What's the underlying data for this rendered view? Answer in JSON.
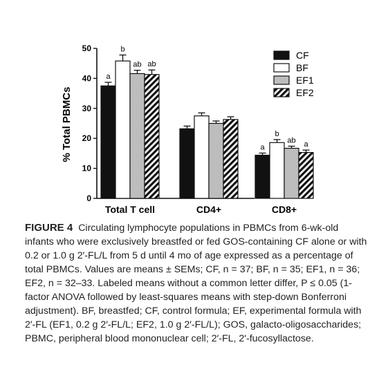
{
  "chart_data": {
    "type": "bar",
    "title": "",
    "xlabel": "",
    "ylabel": "% Total PBMCs",
    "ylim": [
      0,
      50
    ],
    "yticks": [
      0,
      10,
      20,
      30,
      40,
      50
    ],
    "categories": [
      "Total T cell",
      "CD4+",
      "CD8+"
    ],
    "series": [
      {
        "name": "CF",
        "values": [
          37.5,
          23.2,
          14.4
        ],
        "errors": [
          1.2,
          0.9,
          0.7
        ],
        "letters": [
          "a",
          "",
          "a"
        ]
      },
      {
        "name": "BF",
        "values": [
          45.8,
          27.5,
          18.6
        ],
        "errors": [
          2.0,
          1.0,
          1.0
        ],
        "letters": [
          "b",
          "",
          "b"
        ]
      },
      {
        "name": "EF1",
        "values": [
          41.6,
          25.0,
          16.7
        ],
        "errors": [
          1.1,
          0.8,
          0.7
        ],
        "letters": [
          "ab",
          "",
          "ab"
        ]
      },
      {
        "name": "EF2",
        "values": [
          41.3,
          26.3,
          15.3
        ],
        "errors": [
          1.5,
          0.9,
          0.8
        ],
        "letters": [
          "ab",
          "",
          "a"
        ]
      }
    ],
    "legend_position": "top-right",
    "grid": false,
    "colors": {
      "CF": "#111111",
      "BF": "#ffffff",
      "EF1": "#bdbdbd",
      "EF2": "hatched"
    }
  },
  "caption": {
    "label": "FIGURE 4",
    "text": "Circulating lymphocyte populations in PBMCs from 6-wk-old infants who were exclusively breastfed or fed GOS-containing CF alone or with 0.2 or 1.0 g 2′-FL/L from 5 d until 4 mo of age expressed as a percentage of total PBMCs. Values are means ± SEMs; CF, n = 37; BF, n = 35; EF1, n = 36; EF2, n = 32–33. Labeled means without a common letter differ, P ≤ 0.05 (1-factor ANOVA followed by least-squares means with step-down Bonferroni adjustment). BF, breastfed; CF, control formula; EF, experimental formula with 2′-FL (EF1, 0.2 g 2′-FL/L; EF2, 1.0 g 2′-FL/L); GOS, galacto-oligosaccharides; PBMC, peripheral blood mononuclear cell; 2′-FL, 2′-fucosyllactose."
  }
}
